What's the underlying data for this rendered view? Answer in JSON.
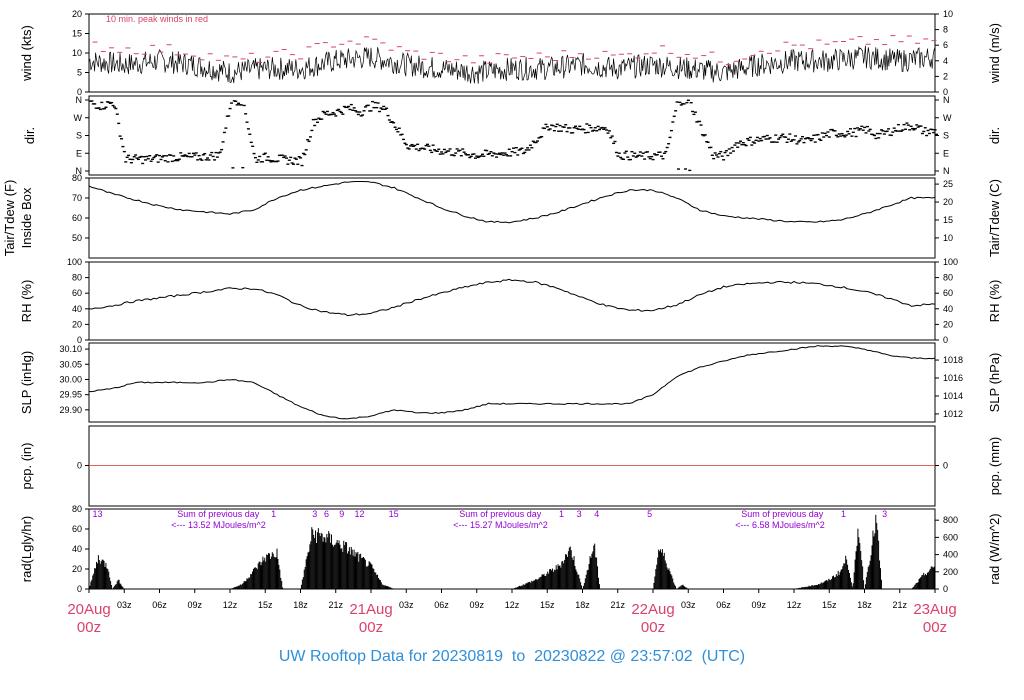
{
  "footer": "UW Rooftop Data for 20230819  to  20230822 @ 23:57:02  (UTC)",
  "colors": {
    "line": "#000000",
    "peak": "#d9436b",
    "annotation": "#9400d3",
    "day_label": "#d9436b",
    "footer": "#2f8fd8",
    "precip": "#e06060"
  },
  "x_axis": {
    "hour_ticks": [
      "03z",
      "06z",
      "09z",
      "12z",
      "15z",
      "18z",
      "21z",
      "03z",
      "06z",
      "09z",
      "12z",
      "15z",
      "18z",
      "21z",
      "03z",
      "06z",
      "09z",
      "12z",
      "15z",
      "18z",
      "21z"
    ],
    "day_labels": [
      {
        "date": "20Aug",
        "time": "00z"
      },
      {
        "date": "21Aug",
        "time": "00z"
      },
      {
        "date": "22Aug",
        "time": "00z"
      },
      {
        "date": "23Aug",
        "time": "00z"
      }
    ],
    "range_hours": [
      0,
      72
    ]
  },
  "chart_data": [
    {
      "type": "line",
      "id": "wind",
      "ylabel_left": "wind (kts)",
      "ylabel_right": "wind (m/s)",
      "ylim_left": [
        0,
        20
      ],
      "ylim_right": [
        0,
        10
      ],
      "ticks_left": [
        "0",
        "5",
        "10",
        "15",
        "20"
      ],
      "ticks_right": [
        "0",
        "2",
        "4",
        "6",
        "8",
        "10"
      ],
      "annotation": "10 min. peak winds in red",
      "series": [
        {
          "name": "wind",
          "x": [
            0,
            3,
            6,
            9,
            12,
            15,
            18,
            21,
            24,
            27,
            30,
            33,
            36,
            39,
            42,
            45,
            48,
            51,
            54,
            57,
            60,
            63,
            66,
            69,
            72
          ],
          "values": [
            8,
            7,
            8,
            7,
            5,
            6,
            6,
            8,
            9,
            7,
            6,
            5,
            6,
            6,
            7,
            6,
            7,
            6,
            5,
            7,
            8,
            8,
            9,
            8,
            9
          ]
        },
        {
          "name": "peak",
          "x": [
            0,
            3,
            6,
            9,
            12,
            15,
            18,
            21,
            24,
            27,
            30,
            33,
            36,
            39,
            42,
            45,
            48,
            51,
            54,
            57,
            60,
            63,
            66,
            69,
            72
          ],
          "values": [
            12,
            11,
            11,
            10,
            8,
            9,
            10,
            13,
            13,
            10,
            9,
            8,
            9,
            9,
            10,
            9,
            11,
            10,
            8,
            11,
            12,
            12,
            13,
            13,
            13
          ]
        }
      ]
    },
    {
      "type": "scatter",
      "id": "direction",
      "ylabel_left": "dir.",
      "ylabel_right": "dir.",
      "ticks_left": [
        "N",
        "E",
        "S",
        "W",
        "N"
      ],
      "ticks_right": [
        "N",
        "E",
        "S",
        "W",
        "N"
      ],
      "ylim": [
        0,
        360
      ],
      "series": [
        {
          "name": "direction",
          "x": [
            0,
            1,
            2,
            3,
            5,
            7,
            9,
            11,
            12,
            13,
            14,
            15,
            16,
            18,
            19,
            20,
            21,
            22,
            23,
            24,
            25,
            27,
            29,
            31,
            33,
            35,
            37,
            39,
            41,
            43,
            44,
            45,
            47,
            49,
            50,
            51,
            53,
            54,
            55,
            57,
            59,
            61,
            63,
            65,
            66,
            67,
            68,
            69,
            70,
            71
          ],
          "values": [
            345,
            330,
            350,
            60,
            60,
            70,
            70,
            80,
            360,
            355,
            60,
            70,
            60,
            50,
            250,
            290,
            300,
            320,
            300,
            330,
            320,
            130,
            110,
            95,
            80,
            90,
            100,
            230,
            210,
            220,
            220,
            80,
            75,
            80,
            360,
            350,
            80,
            75,
            140,
            160,
            170,
            150,
            190,
            195,
            210,
            180,
            200,
            220,
            230,
            200
          ]
        }
      ]
    },
    {
      "type": "line",
      "id": "temperature",
      "ylabel_left": "Tair/Tdew (F)",
      "ylabel_left2": "Inside Box",
      "ylabel_right": "Tair/Tdew (C)",
      "ylim_left": [
        40,
        80
      ],
      "ylim_right": [
        4.4,
        26.7
      ],
      "ticks_left": [
        "50",
        "60",
        "70",
        "80"
      ],
      "ticks_right": [
        "10",
        "15",
        "20",
        "25"
      ],
      "series": [
        {
          "name": "Tair",
          "x": [
            0,
            2,
            4,
            6,
            8,
            10,
            12,
            14,
            16,
            18,
            20,
            22,
            24,
            26,
            28,
            30,
            32,
            34,
            36,
            38,
            40,
            42,
            44,
            46,
            48,
            50,
            52,
            54,
            56,
            58,
            60,
            62,
            64,
            66,
            68,
            70,
            72
          ],
          "values": [
            76,
            72,
            69,
            66,
            64,
            63,
            62,
            64,
            70,
            74,
            76,
            78,
            78,
            75,
            70,
            65,
            61,
            58,
            58,
            60,
            63,
            67,
            71,
            74,
            74,
            70,
            64,
            61,
            60,
            59,
            58,
            58,
            59,
            62,
            66,
            70,
            70
          ]
        }
      ]
    },
    {
      "type": "line",
      "id": "rh",
      "ylabel_left": "RH (%)",
      "ylabel_right": "RH (%)",
      "ylim": [
        0,
        100
      ],
      "ticks_left": [
        "0",
        "20",
        "40",
        "60",
        "80",
        "100"
      ],
      "ticks_right": [
        "0",
        "20",
        "40",
        "60",
        "80",
        "100"
      ],
      "series": [
        {
          "name": "RH",
          "x": [
            0,
            2,
            4,
            6,
            8,
            10,
            12,
            14,
            16,
            18,
            20,
            22,
            24,
            26,
            28,
            30,
            32,
            34,
            36,
            38,
            40,
            42,
            44,
            46,
            48,
            50,
            52,
            54,
            56,
            58,
            60,
            62,
            64,
            66,
            68,
            70,
            72
          ],
          "values": [
            40,
            44,
            50,
            54,
            58,
            62,
            66,
            66,
            58,
            44,
            36,
            32,
            34,
            42,
            52,
            60,
            68,
            74,
            77,
            74,
            66,
            54,
            44,
            38,
            38,
            45,
            58,
            68,
            72,
            74,
            74,
            72,
            68,
            62,
            54,
            44,
            46
          ]
        }
      ]
    },
    {
      "type": "line",
      "id": "pressure",
      "ylabel_left": "SLP (inHg)",
      "ylabel_right": "SLP (hPa)",
      "ylim_left": [
        29.86,
        30.12
      ],
      "ylim_right": [
        1011.1,
        1019.9
      ],
      "ticks_left": [
        "29.90",
        "29.95",
        "30.00",
        "30.05",
        "30.10"
      ],
      "ticks_right": [
        "1012",
        "1014",
        "1016",
        "1018"
      ],
      "series": [
        {
          "name": "SLP",
          "x": [
            0,
            2,
            4,
            6,
            8,
            10,
            12,
            14,
            16,
            18,
            20,
            22,
            24,
            26,
            28,
            30,
            32,
            34,
            36,
            38,
            40,
            42,
            44,
            46,
            48,
            50,
            52,
            54,
            56,
            58,
            60,
            62,
            64,
            66,
            68,
            70,
            72
          ],
          "values": [
            29.96,
            29.97,
            29.99,
            29.99,
            29.99,
            29.99,
            30.0,
            29.99,
            29.95,
            29.91,
            29.88,
            29.87,
            29.88,
            29.9,
            29.89,
            29.89,
            29.9,
            29.92,
            29.92,
            29.92,
            29.92,
            29.92,
            29.92,
            29.92,
            29.95,
            30.01,
            30.04,
            30.06,
            30.08,
            30.09,
            30.1,
            30.11,
            30.11,
            30.1,
            30.08,
            30.07,
            30.07
          ]
        }
      ]
    },
    {
      "type": "line",
      "id": "precipitation",
      "ylabel_left": "pcp. (in)",
      "ylabel_right": "pcp. (mm)",
      "ticks_left": [
        "0"
      ],
      "ticks_right": [
        "0"
      ],
      "series": [
        {
          "name": "precip",
          "x": [
            0,
            72
          ],
          "values": [
            0,
            0
          ]
        }
      ]
    },
    {
      "type": "area",
      "id": "radiation",
      "ylabel_left": "rad(Lgly/hr)",
      "ylabel_right": "rad (W/m^2)",
      "ylim_left": [
        0,
        80
      ],
      "ylim_right": [
        0,
        930
      ],
      "ticks_left": [
        "0",
        "20",
        "40",
        "60",
        "80"
      ],
      "ticks_right": [
        "0",
        "200",
        "400",
        "600",
        "800"
      ],
      "annotations": [
        {
          "x": 7,
          "lines": [
            "Sum of previous day",
            "<--- 13.52 MJoules/m^2"
          ]
        },
        {
          "x": 31,
          "lines": [
            "Sum of previous day",
            "<--- 15.27 MJoules/m^2"
          ]
        },
        {
          "x": 55,
          "lines": [
            "Sum of previous day",
            "<--- 6.58 MJoules/m^2"
          ]
        }
      ],
      "top_marks": [
        {
          "x": 0.3,
          "label": "13"
        },
        {
          "x": 15.5,
          "label": "1"
        },
        {
          "x": 19,
          "label": "3"
        },
        {
          "x": 20,
          "label": "6"
        },
        {
          "x": 21.3,
          "label": "9"
        },
        {
          "x": 22.6,
          "label": "12"
        },
        {
          "x": 25.5,
          "label": "15"
        },
        {
          "x": 40,
          "label": "1"
        },
        {
          "x": 41.5,
          "label": "3"
        },
        {
          "x": 43,
          "label": "4"
        },
        {
          "x": 47.5,
          "label": "5"
        },
        {
          "x": 64,
          "label": "1"
        },
        {
          "x": 67.5,
          "label": "3"
        }
      ],
      "series": [
        {
          "name": "radiation",
          "x": [
            0,
            0.8,
            1.6,
            2,
            2.5,
            3,
            12,
            13,
            14,
            15,
            16,
            16.5,
            18,
            19,
            20,
            21,
            22,
            23,
            24,
            25,
            26,
            27,
            36,
            38,
            40,
            41,
            42,
            43,
            43.5,
            44,
            48,
            48.5,
            49,
            50,
            50.5,
            51,
            51.5,
            52,
            60,
            62,
            63,
            64,
            64.5,
            65,
            65.5,
            66,
            67,
            67.5,
            68,
            69,
            70,
            71,
            72
          ],
          "values": [
            0,
            35,
            25,
            0,
            10,
            0,
            0,
            5,
            20,
            35,
            40,
            0,
            0,
            62,
            58,
            52,
            45,
            35,
            25,
            5,
            0,
            0,
            0,
            10,
            25,
            45,
            0,
            50,
            0,
            0,
            0,
            45,
            35,
            0,
            5,
            0,
            0,
            0,
            0,
            5,
            10,
            20,
            35,
            0,
            70,
            0,
            78,
            0,
            0,
            0,
            0,
            15,
            25
          ]
        }
      ]
    }
  ]
}
